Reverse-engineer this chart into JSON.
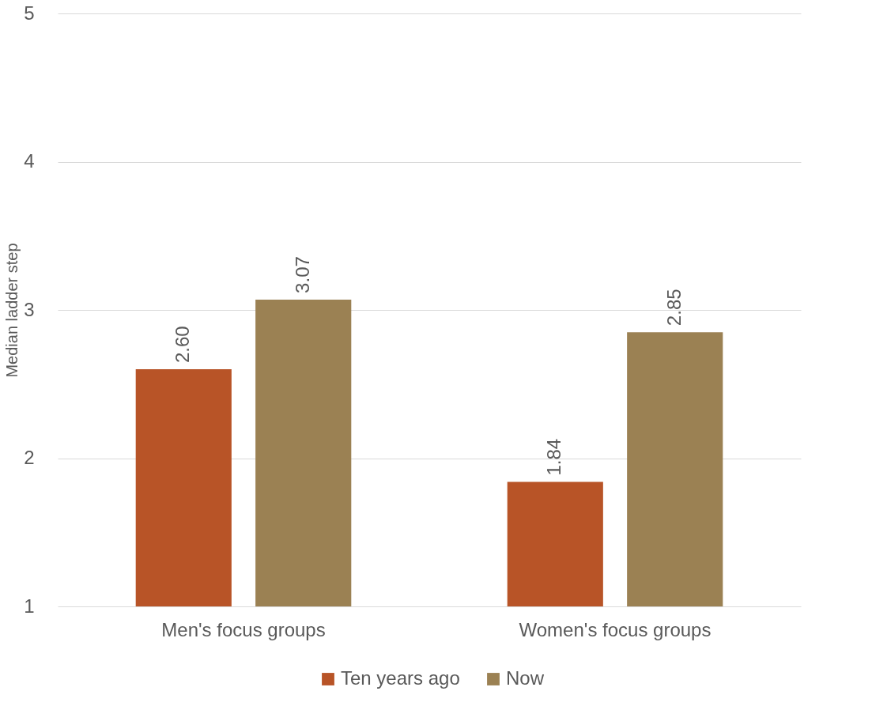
{
  "chart_data": {
    "type": "bar",
    "ylabel": "Median ladder step",
    "categories": [
      "Men's focus groups",
      "Women's focus groups"
    ],
    "series": [
      {
        "name": "Ten years ago",
        "color": "#b85427",
        "values": [
          2.6,
          1.84
        ],
        "value_labels": [
          "2.60",
          "1.84"
        ]
      },
      {
        "name": "Now",
        "color": "#9b8153",
        "values": [
          3.07,
          2.85
        ],
        "value_labels": [
          "3.07",
          "2.85"
        ]
      }
    ],
    "ylim": [
      1,
      5
    ],
    "yticks": [
      1,
      2,
      3,
      4,
      5
    ],
    "grid": "y",
    "legend": "bottom"
  }
}
